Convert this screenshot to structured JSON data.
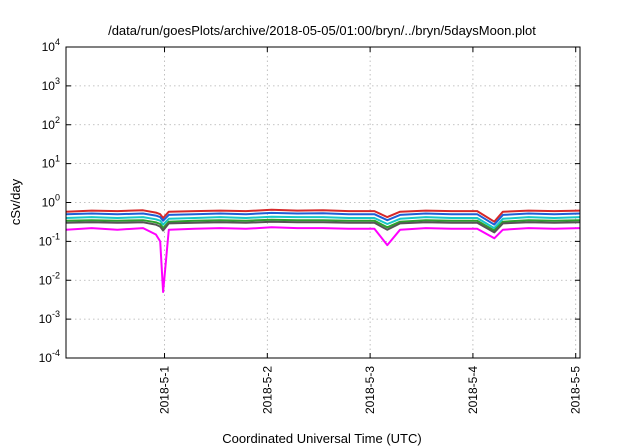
{
  "chart_data": {
    "type": "line",
    "title": "/data/run/goesPlots/archive/2018-05-05/01:00/bryn/../bryn/5daysMoon.plot",
    "xlabel": "Coordinated Universal Time (UTC)",
    "ylabel": "cSv/day",
    "y_scale": "log",
    "ylim": [
      0.0001,
      10000
    ],
    "y_ticks": [
      {
        "mantissa": "10",
        "exp": "-4",
        "value": 0.0001
      },
      {
        "mantissa": "10",
        "exp": "-3",
        "value": 0.001
      },
      {
        "mantissa": "10",
        "exp": "-2",
        "value": 0.01
      },
      {
        "mantissa": "10",
        "exp": "-1",
        "value": 0.1
      },
      {
        "mantissa": "10",
        "exp": "0",
        "value": 1
      },
      {
        "mantissa": "10",
        "exp": "1",
        "value": 10
      },
      {
        "mantissa": "10",
        "exp": "2",
        "value": 100
      },
      {
        "mantissa": "10",
        "exp": "3",
        "value": 1000
      },
      {
        "mantissa": "10",
        "exp": "4",
        "value": 10000
      }
    ],
    "xlim": [
      "2018-04-30 01:00",
      "2018-05-05 01:00"
    ],
    "x_ticks": [
      {
        "label": "2018-5-1",
        "value": "2018-05-01 00:00"
      },
      {
        "label": "2018-5-2",
        "value": "2018-05-02 00:00"
      },
      {
        "label": "2018-5-3",
        "value": "2018-05-03 00:00"
      },
      {
        "label": "2018-5-4",
        "value": "2018-05-04 00:00"
      },
      {
        "label": "2018-5-5",
        "value": "2018-05-05 00:00"
      }
    ],
    "grid": true,
    "x": [
      "2018-04-30 01:00",
      "2018-04-30 07:00",
      "2018-04-30 13:00",
      "2018-04-30 19:00",
      "2018-04-30 22:00",
      "2018-04-30 23:00",
      "2018-04-30 23:40",
      "2018-05-01 01:00",
      "2018-05-01 07:00",
      "2018-05-01 13:00",
      "2018-05-01 19:00",
      "2018-05-02 01:00",
      "2018-05-02 07:00",
      "2018-05-02 13:00",
      "2018-05-02 19:00",
      "2018-05-03 01:00",
      "2018-05-03 04:00",
      "2018-05-03 07:00",
      "2018-05-03 13:00",
      "2018-05-03 19:00",
      "2018-05-04 01:00",
      "2018-05-04 05:00",
      "2018-05-04 07:00",
      "2018-05-04 13:00",
      "2018-05-04 19:00",
      "2018-05-05 01:00"
    ],
    "series": [
      {
        "color": "#d62728",
        "values": [
          0.58,
          0.62,
          0.6,
          0.63,
          0.55,
          0.5,
          0.4,
          0.58,
          0.6,
          0.62,
          0.6,
          0.65,
          0.62,
          0.63,
          0.6,
          0.6,
          0.42,
          0.58,
          0.62,
          0.6,
          0.6,
          0.32,
          0.58,
          0.62,
          0.6,
          0.62
        ]
      },
      {
        "color": "#1f5fd6",
        "values": [
          0.5,
          0.52,
          0.5,
          0.52,
          0.46,
          0.42,
          0.34,
          0.48,
          0.5,
          0.52,
          0.5,
          0.54,
          0.52,
          0.53,
          0.5,
          0.5,
          0.35,
          0.48,
          0.52,
          0.5,
          0.5,
          0.27,
          0.48,
          0.52,
          0.5,
          0.52
        ]
      },
      {
        "color": "#17c7c7",
        "values": [
          0.4,
          0.42,
          0.4,
          0.42,
          0.37,
          0.34,
          0.27,
          0.38,
          0.4,
          0.42,
          0.4,
          0.43,
          0.42,
          0.42,
          0.4,
          0.4,
          0.28,
          0.38,
          0.42,
          0.4,
          0.4,
          0.22,
          0.38,
          0.42,
          0.4,
          0.42
        ]
      },
      {
        "color": "#2ca02c",
        "values": [
          0.34,
          0.35,
          0.34,
          0.35,
          0.31,
          0.28,
          0.22,
          0.32,
          0.34,
          0.35,
          0.34,
          0.36,
          0.35,
          0.35,
          0.34,
          0.34,
          0.23,
          0.32,
          0.35,
          0.34,
          0.34,
          0.19,
          0.32,
          0.35,
          0.34,
          0.35
        ]
      },
      {
        "color": "#555555",
        "values": [
          0.3,
          0.31,
          0.3,
          0.31,
          0.27,
          0.24,
          0.19,
          0.29,
          0.3,
          0.31,
          0.3,
          0.32,
          0.31,
          0.31,
          0.3,
          0.3,
          0.2,
          0.29,
          0.31,
          0.3,
          0.3,
          0.17,
          0.29,
          0.31,
          0.3,
          0.31
        ]
      },
      {
        "color": "#ff00ff",
        "values": [
          0.2,
          0.22,
          0.2,
          0.22,
          0.15,
          0.1,
          0.005,
          0.2,
          0.21,
          0.22,
          0.21,
          0.23,
          0.22,
          0.22,
          0.21,
          0.21,
          0.08,
          0.2,
          0.22,
          0.21,
          0.21,
          0.12,
          0.2,
          0.22,
          0.21,
          0.22
        ]
      }
    ]
  }
}
